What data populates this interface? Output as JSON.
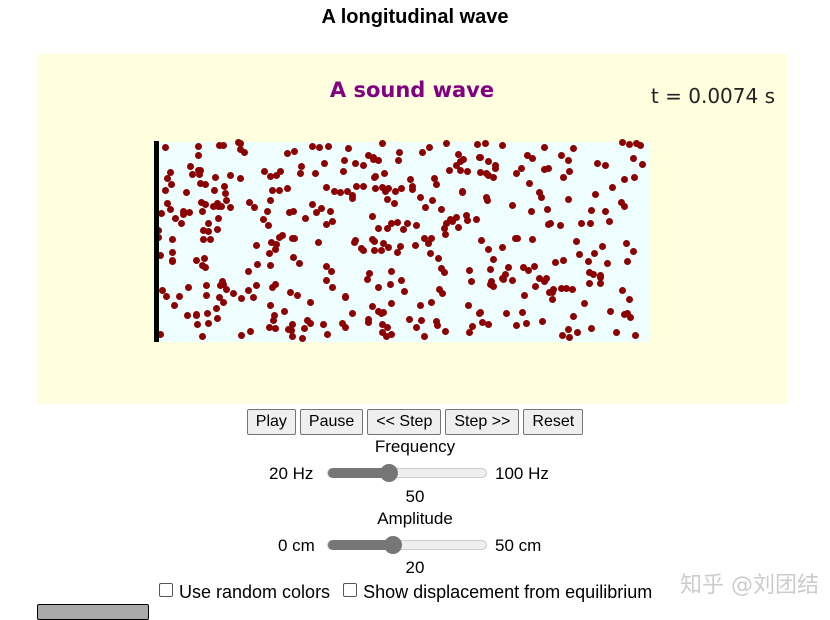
{
  "page": {
    "title": "A longitudinal wave"
  },
  "simulation": {
    "title": "A sound wave",
    "time_label": "t = 0.0074 s",
    "colors": {
      "panel_bg": "#ffffe0",
      "tube_bg": "#eefeff",
      "particle": "#8b0000",
      "title": "#800080"
    }
  },
  "controls": {
    "buttons": [
      "Play",
      "Pause",
      "<< Step",
      "Step >>",
      "Reset"
    ],
    "frequency": {
      "label": "Frequency",
      "min_label": "20 Hz",
      "max_label": "100 Hz",
      "value": "50",
      "min": 20,
      "max": 100
    },
    "amplitude": {
      "label": "Amplitude",
      "min_label": "0 cm",
      "max_label": "50 cm",
      "value": "20",
      "min": 0,
      "max": 50
    },
    "checkboxes": [
      {
        "label": "Use random colors",
        "checked": false
      },
      {
        "label": "Show displacement from equilibrium",
        "checked": false
      }
    ]
  },
  "watermark": "知乎 @刘团结"
}
